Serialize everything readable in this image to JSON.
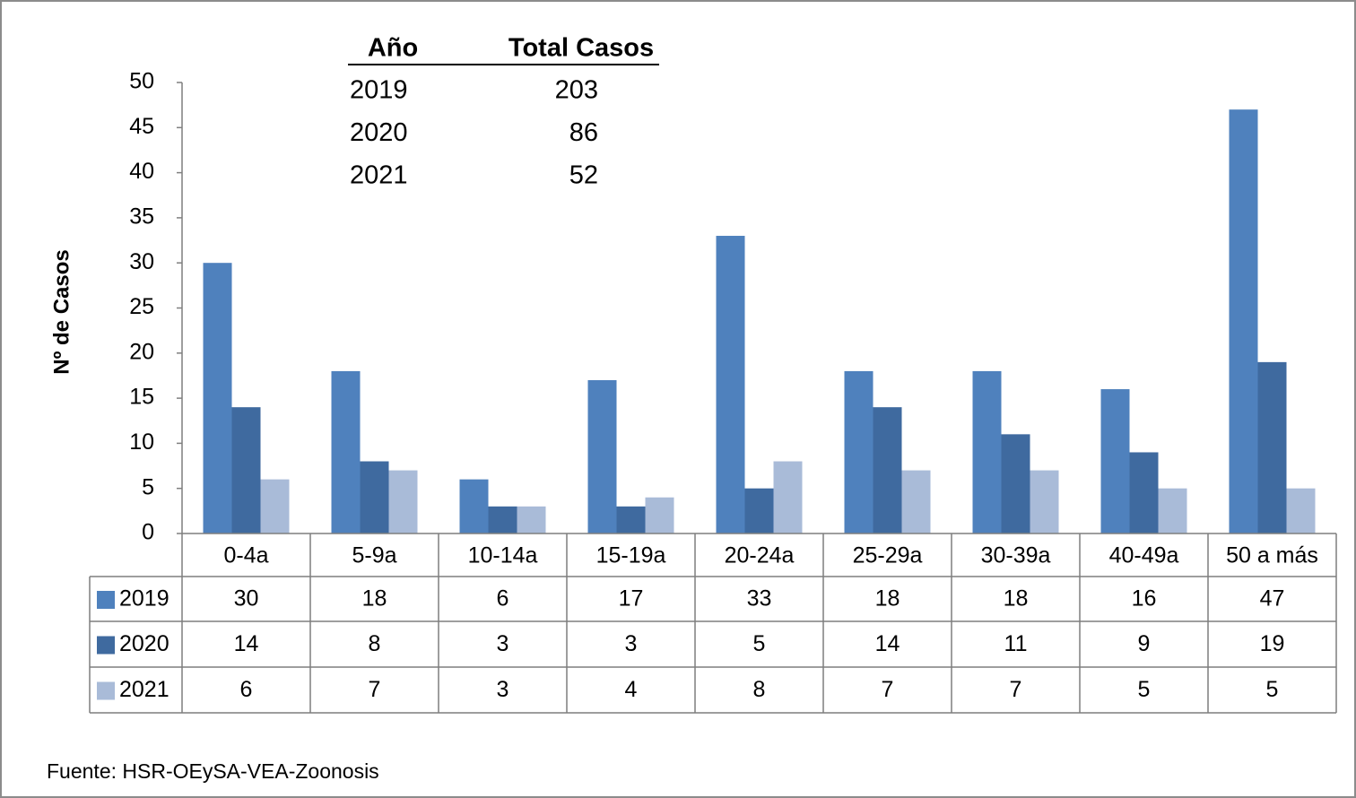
{
  "chart_data": {
    "type": "bar",
    "y_label": "Nº  de Casos",
    "categories": [
      "0-4a",
      "5-9a",
      "10-14a",
      "15-19a",
      "20-24a",
      "25-29a",
      "30-39a",
      "40-49a",
      "50 a más"
    ],
    "series": [
      {
        "name": "2019",
        "color": "#4f81bd",
        "values": [
          30,
          18,
          6,
          17,
          33,
          18,
          18,
          16,
          47
        ]
      },
      {
        "name": "2020",
        "color": "#3f6a9f",
        "values": [
          14,
          8,
          3,
          3,
          5,
          14,
          11,
          9,
          19
        ]
      },
      {
        "name": "2021",
        "color": "#a9bbd8",
        "values": [
          6,
          7,
          3,
          4,
          8,
          7,
          7,
          5,
          5
        ]
      }
    ],
    "ylim": [
      0,
      50
    ],
    "yticks": [
      0,
      5,
      10,
      15,
      20,
      25,
      30,
      35,
      40,
      45,
      50
    ],
    "grid": false,
    "summary_table": {
      "headers": [
        "Año",
        "Total Casos"
      ],
      "rows": [
        [
          "2019",
          203
        ],
        [
          "2020",
          86
        ],
        [
          "2021",
          52
        ]
      ]
    },
    "source": "Fuente: HSR-OEySA-VEA-Zoonosis"
  }
}
